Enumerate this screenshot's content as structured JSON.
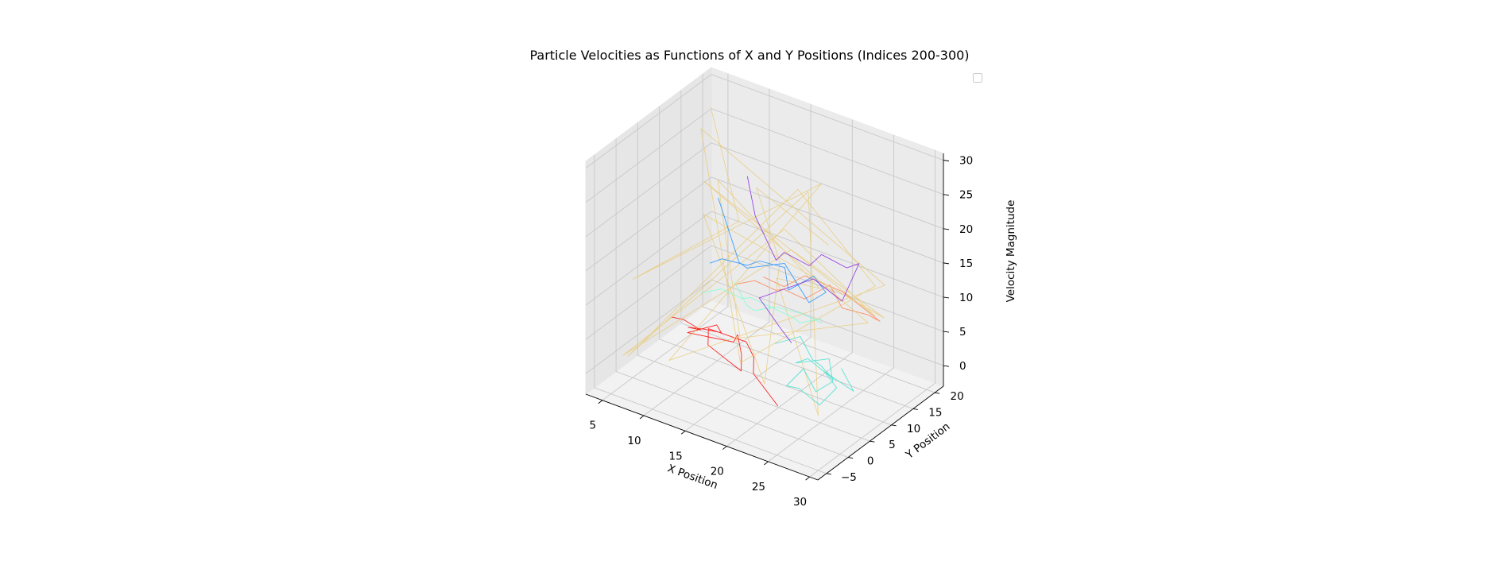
{
  "chart_data": {
    "type": "line3d",
    "title": "Particle Velocities as Functions of X and Y Positions (Indices 200-300)",
    "xlabel": "X Position",
    "ylabel": "Y Position",
    "zlabel": "Velocity Magnitude",
    "xlim": [
      3,
      31
    ],
    "ylim": [
      -7,
      22
    ],
    "zlim": [
      -3,
      31
    ],
    "xticks": [
      "5",
      "10",
      "15",
      "20",
      "25",
      "30"
    ],
    "yticks": [
      "−5",
      "0",
      "5",
      "10",
      "15",
      "20"
    ],
    "zticks": [
      "0",
      "5",
      "10",
      "15",
      "20",
      "25",
      "30"
    ],
    "grid": true,
    "legend": "top-right, empty",
    "colors": [
      "#ff0000",
      "#ff7f50",
      "#e8c872",
      "#40e0d0",
      "#7fffd4",
      "#1e90ff",
      "#8a2be2"
    ],
    "series": [
      {
        "color": "#ff0000",
        "points": [
          [
            6,
            7,
            3
          ],
          [
            8,
            6,
            4
          ],
          [
            9,
            8,
            2
          ],
          [
            7,
            9,
            1
          ],
          [
            10,
            7,
            3
          ],
          [
            11,
            9,
            2
          ],
          [
            12,
            6,
            5
          ],
          [
            9,
            5,
            3
          ],
          [
            13,
            8,
            2
          ],
          [
            14,
            7,
            4
          ],
          [
            15,
            6,
            2
          ],
          [
            16,
            4,
            1
          ],
          [
            12,
            4,
            3
          ],
          [
            11,
            6,
            4
          ],
          [
            14,
            9,
            2
          ],
          [
            17,
            5,
            3
          ],
          [
            18,
            3,
            2
          ],
          [
            20,
            2,
            1
          ],
          [
            22,
            1,
            0
          ]
        ]
      },
      {
        "color": "#ff7f50",
        "points": [
          [
            12,
            10,
            9
          ],
          [
            14,
            11,
            10
          ],
          [
            16,
            12,
            9
          ],
          [
            18,
            10,
            11
          ],
          [
            20,
            11,
            10
          ],
          [
            22,
            13,
            12
          ],
          [
            24,
            12,
            10
          ],
          [
            26,
            14,
            9
          ],
          [
            27,
            15,
            8
          ],
          [
            23,
            14,
            11
          ],
          [
            19,
            13,
            12
          ],
          [
            17,
            12,
            10
          ],
          [
            15,
            11,
            11
          ]
        ]
      },
      {
        "color": "#e8c872",
        "points": [
          [
            5,
            18,
            28
          ],
          [
            10,
            15,
            15
          ],
          [
            4,
            2,
            10
          ],
          [
            20,
            15,
            25
          ],
          [
            12,
            -5,
            5
          ],
          [
            25,
            20,
            10
          ],
          [
            8,
            10,
            30
          ],
          [
            18,
            0,
            5
          ],
          [
            28,
            12,
            15
          ],
          [
            15,
            19,
            20
          ],
          [
            6,
            -3,
            2
          ],
          [
            22,
            8,
            28
          ],
          [
            30,
            -5,
            5
          ],
          [
            14,
            16,
            8
          ],
          [
            26,
            3,
            18
          ],
          [
            9,
            12,
            22
          ],
          [
            19,
            -2,
            10
          ],
          [
            24,
            18,
            5
          ],
          [
            11,
            5,
            26
          ],
          [
            29,
            10,
            12
          ],
          [
            16,
            14,
            17
          ],
          [
            7,
            -6,
            4
          ],
          [
            21,
            6,
            20
          ],
          [
            27,
            16,
            8
          ],
          [
            13,
            1,
            24
          ],
          [
            23,
            -4,
            6
          ],
          [
            17,
            11,
            14
          ],
          [
            10,
            19,
            18
          ],
          [
            25,
            7,
            22
          ]
        ]
      },
      {
        "color": "#40e0d0",
        "points": [
          [
            18,
            8,
            4
          ],
          [
            20,
            10,
            5
          ],
          [
            22,
            9,
            3
          ],
          [
            24,
            7,
            4
          ],
          [
            25,
            8,
            2
          ],
          [
            23,
            6,
            5
          ],
          [
            21,
            7,
            3
          ],
          [
            24,
            9,
            4
          ],
          [
            26,
            6,
            3
          ],
          [
            25,
            4,
            2
          ],
          [
            23,
            5,
            4
          ],
          [
            22,
            3,
            2
          ],
          [
            24,
            2,
            3
          ],
          [
            26,
            3,
            1
          ],
          [
            27,
            5,
            3
          ],
          [
            25,
            6,
            4
          ],
          [
            28,
            7,
            2
          ],
          [
            26,
            8,
            4
          ]
        ]
      },
      {
        "color": "#7fffd4",
        "points": [
          [
            8,
            10,
            6
          ],
          [
            10,
            11,
            7
          ],
          [
            12,
            12,
            6
          ],
          [
            14,
            10,
            8
          ],
          [
            16,
            11,
            7
          ],
          [
            18,
            12,
            6
          ],
          [
            20,
            10,
            7
          ],
          [
            22,
            11,
            8
          ],
          [
            21,
            13,
            6
          ],
          [
            19,
            12,
            7
          ],
          [
            17,
            10,
            8
          ],
          [
            15,
            9,
            7
          ],
          [
            13,
            11,
            6
          ],
          [
            11,
            12,
            8
          ]
        ]
      },
      {
        "color": "#1e90ff",
        "points": [
          [
            7,
            14,
            8
          ],
          [
            9,
            13,
            10
          ],
          [
            11,
            15,
            9
          ],
          [
            13,
            14,
            11
          ],
          [
            15,
            16,
            10
          ],
          [
            17,
            13,
            9
          ],
          [
            19,
            15,
            11
          ],
          [
            21,
            14,
            10
          ],
          [
            20,
            12,
            9
          ],
          [
            16,
            14,
            12
          ],
          [
            12,
            13,
            10
          ],
          [
            10,
            15,
            9
          ],
          [
            8,
            14,
            18
          ]
        ]
      },
      {
        "color": "#8a2be2",
        "points": [
          [
            11,
            15,
            22
          ],
          [
            13,
            13,
            18
          ],
          [
            15,
            14,
            12
          ],
          [
            17,
            12,
            15
          ],
          [
            19,
            14,
            13
          ],
          [
            21,
            13,
            16
          ],
          [
            23,
            15,
            14
          ],
          [
            25,
            14,
            16
          ],
          [
            24,
            12,
            11
          ],
          [
            20,
            13,
            12
          ],
          [
            16,
            11,
            9
          ],
          [
            14,
            12,
            7
          ],
          [
            18,
            9,
            6
          ],
          [
            20,
            8,
            5
          ]
        ]
      }
    ]
  }
}
